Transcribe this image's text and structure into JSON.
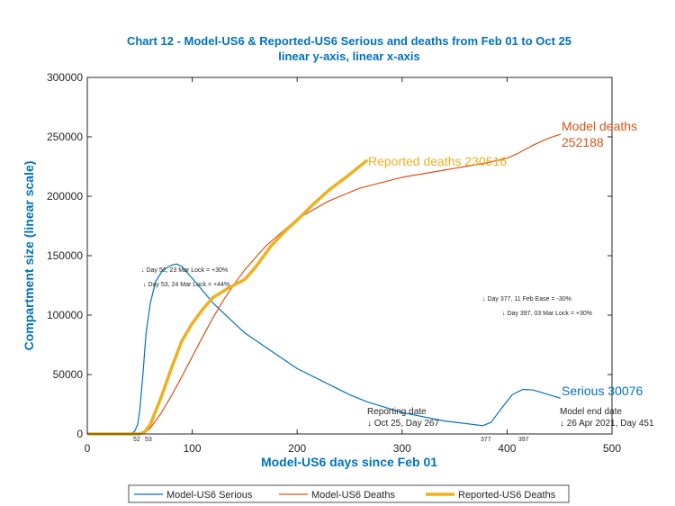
{
  "chart_data": {
    "type": "line",
    "title": "Chart 12 - Model-US6 & Reported-US6 Serious and deaths from Feb 01 to Oct 25",
    "subtitle": "linear y-axis, linear x-axis",
    "xlabel": "Model-US6 days since Feb 01",
    "ylabel": "Compartment size (linear scale)",
    "xlim": [
      0,
      500
    ],
    "ylim": [
      0,
      300000
    ],
    "xticks": [
      "0",
      "100",
      "200",
      "300",
      "400",
      "500"
    ],
    "yticks": [
      "0",
      "50000",
      "100000",
      "150000",
      "200000",
      "250000",
      "300000"
    ],
    "grid": false,
    "legend_position": "bottom",
    "series": [
      {
        "name": "Model-US6 Serious",
        "color": "#0072bd",
        "width": 1.2,
        "points": [
          [
            0,
            0
          ],
          [
            40,
            0
          ],
          [
            45,
            2000
          ],
          [
            48,
            8000
          ],
          [
            50,
            20000
          ],
          [
            53,
            50000
          ],
          [
            56,
            85000
          ],
          [
            60,
            110000
          ],
          [
            65,
            128000
          ],
          [
            72,
            138000
          ],
          [
            80,
            142000
          ],
          [
            85,
            143000
          ],
          [
            90,
            141000
          ],
          [
            100,
            131000
          ],
          [
            120,
            110000
          ],
          [
            150,
            85000
          ],
          [
            200,
            55000
          ],
          [
            250,
            33000
          ],
          [
            267,
            27000
          ],
          [
            300,
            18000
          ],
          [
            340,
            11000
          ],
          [
            377,
            7000
          ],
          [
            385,
            10000
          ],
          [
            395,
            22000
          ],
          [
            405,
            33000
          ],
          [
            415,
            37500
          ],
          [
            425,
            37000
          ],
          [
            440,
            33000
          ],
          [
            451,
            30076
          ]
        ]
      },
      {
        "name": "Model-US6 Deaths",
        "color": "#d95319",
        "width": 1.2,
        "points": [
          [
            0,
            0
          ],
          [
            50,
            0
          ],
          [
            55,
            1000
          ],
          [
            60,
            5000
          ],
          [
            70,
            17000
          ],
          [
            80,
            32000
          ],
          [
            90,
            48000
          ],
          [
            100,
            65000
          ],
          [
            110,
            82000
          ],
          [
            120,
            98000
          ],
          [
            130,
            113000
          ],
          [
            140,
            126000
          ],
          [
            150,
            138000
          ],
          [
            170,
            158000
          ],
          [
            200,
            181000
          ],
          [
            230,
            196000
          ],
          [
            260,
            207000
          ],
          [
            300,
            216000
          ],
          [
            340,
            222000
          ],
          [
            380,
            228000
          ],
          [
            400,
            232000
          ],
          [
            410,
            236000
          ],
          [
            425,
            243000
          ],
          [
            440,
            249000
          ],
          [
            451,
            252188
          ]
        ]
      },
      {
        "name": "Reported-US6 Deaths",
        "color": "#edb120",
        "width": 3.5,
        "points": [
          [
            0,
            0
          ],
          [
            50,
            0
          ],
          [
            55,
            2000
          ],
          [
            60,
            8000
          ],
          [
            70,
            30000
          ],
          [
            80,
            55000
          ],
          [
            90,
            78000
          ],
          [
            100,
            93000
          ],
          [
            110,
            105000
          ],
          [
            120,
            115000
          ],
          [
            135,
            123000
          ],
          [
            150,
            130000
          ],
          [
            160,
            140000
          ],
          [
            175,
            158000
          ],
          [
            190,
            172000
          ],
          [
            200,
            180000
          ],
          [
            215,
            193000
          ],
          [
            230,
            205000
          ],
          [
            245,
            215000
          ],
          [
            255,
            222000
          ],
          [
            267,
            230516
          ]
        ]
      }
    ],
    "end_labels": {
      "deaths_label": "Model deaths",
      "deaths_value": "252188",
      "reported": "Reported deaths 230516",
      "serious": "Serious 30076"
    },
    "annotations": {
      "a1": "↓ Day 52, 23 Mar Lock = +30%",
      "a2": "↓ Day 53, 24 Mar Lock = +44%",
      "a3": "↓ Day 377, 11 Feb Ease = -30%",
      "a4": "↓ Day 397, 03 Mar Lock = +30%",
      "rep1": "Reporting date",
      "rep2": "↓ Oct 25, Day 267",
      "end1": "Model end date",
      "end2": "↓ 26 Apr 2021, Day 451",
      "m52": "52",
      "m53": "53",
      "m377": "377",
      "m397": "397"
    }
  }
}
